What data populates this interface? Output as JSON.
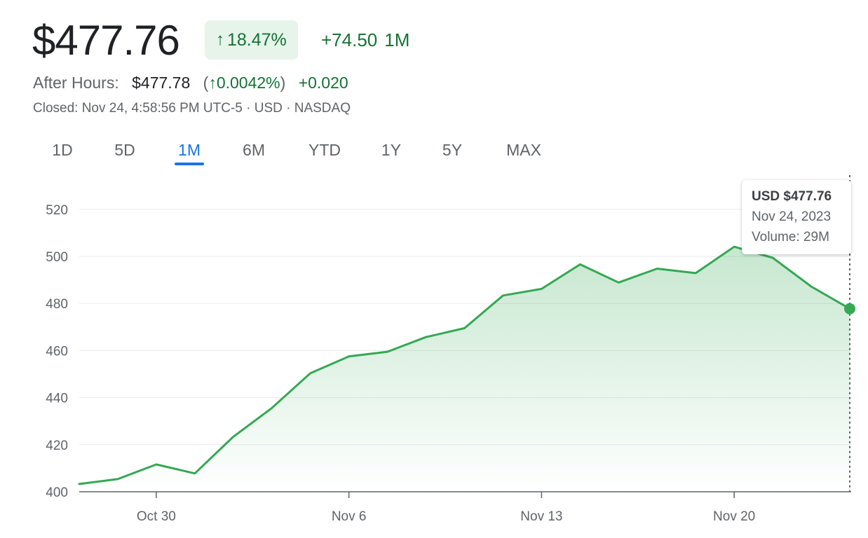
{
  "quote": {
    "price": "$477.76",
    "change_pct": "18.47%",
    "change_abs": "+74.50",
    "period": "1M",
    "after_hours_label": "After Hours:",
    "after_hours_price": "$477.78",
    "after_hours_pct": "0.0042%",
    "after_hours_delta": "+0.020",
    "closed_text": "Closed: Nov 24, 4:58:56 PM UTC-5 · USD · NASDAQ",
    "up_color": "#137333",
    "up_icon": "arrow-up-icon"
  },
  "range_tabs": {
    "items": [
      "1D",
      "5D",
      "1M",
      "6M",
      "YTD",
      "1Y",
      "5Y",
      "MAX"
    ],
    "active": "1M"
  },
  "tooltip": {
    "title": "USD $477.76",
    "date": "Nov 24, 2023",
    "volume": "Volume: 29M"
  },
  "chart_data": {
    "type": "area",
    "x": [
      "Oct 26",
      "Oct 27",
      "Oct 30",
      "Oct 31",
      "Nov 1",
      "Nov 2",
      "Nov 3",
      "Nov 6",
      "Nov 7",
      "Nov 8",
      "Nov 9",
      "Nov 10",
      "Nov 13",
      "Nov 14",
      "Nov 15",
      "Nov 16",
      "Nov 17",
      "Nov 20",
      "Nov 21",
      "Nov 22",
      "Nov 24"
    ],
    "values": [
      403.3,
      405.4,
      411.6,
      407.8,
      423.4,
      435.6,
      450.4,
      457.5,
      459.5,
      465.7,
      469.5,
      483.4,
      486.2,
      496.6,
      488.9,
      494.8,
      492.9,
      504.1,
      499.4,
      487.2,
      477.76
    ],
    "y_ticks": [
      400,
      420,
      440,
      460,
      480,
      500,
      520
    ],
    "ylim": [
      400,
      520
    ],
    "x_tick_labels": [
      "Oct 30",
      "Nov 6",
      "Nov 13",
      "Nov 20"
    ],
    "grid": true,
    "line_color": "#34a853",
    "highlight": "Nov 24"
  }
}
